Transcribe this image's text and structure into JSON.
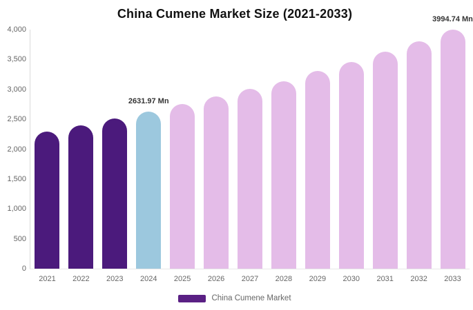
{
  "chart_data": {
    "type": "bar",
    "title": "China Cumene Market Size (2021-2033)",
    "categories": [
      "2021",
      "2022",
      "2023",
      "2024",
      "2025",
      "2026",
      "2027",
      "2028",
      "2029",
      "2030",
      "2031",
      "2032",
      "2033"
    ],
    "series": [
      {
        "name": "China Cumene Market",
        "values": [
          2290,
          2400,
          2510,
          2631.97,
          2750,
          2880,
          3010,
          3140,
          3310,
          3460,
          3635,
          3800,
          3994.74
        ]
      }
    ],
    "bar_colors": [
      "#4B1A7C",
      "#4B1A7C",
      "#4B1A7C",
      "#9CC8DE",
      "#E4BCE8",
      "#E4BCE8",
      "#E4BCE8",
      "#E4BCE8",
      "#E4BCE8",
      "#E4BCE8",
      "#E4BCE8",
      "#E4BCE8",
      "#E4BCE8"
    ],
    "data_labels": [
      {
        "category": "2024",
        "text": "2631.97 Mn"
      },
      {
        "category": "2033",
        "text": "3994.74 Mn"
      }
    ],
    "xlabel": "",
    "ylabel": "",
    "ylim": [
      0,
      4000
    ],
    "yticks": [
      {
        "value": 0,
        "label": "0"
      },
      {
        "value": 500,
        "label": "500"
      },
      {
        "value": 1000,
        "label": "1,000"
      },
      {
        "value": 1500,
        "label": "1,500"
      },
      {
        "value": 2000,
        "label": "2,000"
      },
      {
        "value": 2500,
        "label": "2,500"
      },
      {
        "value": 3000,
        "label": "3,000"
      },
      {
        "value": 3500,
        "label": "3,500"
      },
      {
        "value": 4000,
        "label": "4,000"
      }
    ],
    "grid": false,
    "legend": {
      "position": "bottom",
      "label": "China Cumene Market",
      "swatch_color": "#5A2084"
    },
    "colors": {
      "title_text": "#111111",
      "axis_text": "#666666",
      "data_label_text": "#333333",
      "y_axis_line": "#D9D9D9",
      "x_axis_line": "#E8E8E8",
      "background": "#FFFFFF"
    }
  }
}
